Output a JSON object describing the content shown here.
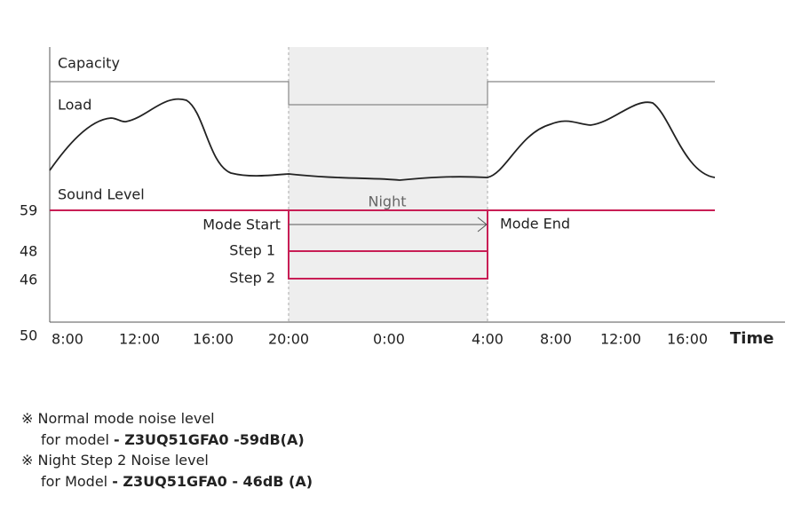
{
  "labels": {
    "capacity": "Capacity",
    "load": "Load",
    "sound_level": "Sound Level",
    "night": "Night",
    "mode_start": "Mode Start",
    "mode_end": "Mode End",
    "step1": "Step 1",
    "step2": "Step 2",
    "time": "Time"
  },
  "y_labels": [
    "59",
    "48",
    "46",
    "50"
  ],
  "x_labels": [
    "8:00",
    "12:00",
    "16:00",
    "20:00",
    "0:00",
    "4:00",
    "8:00",
    "12:00",
    "16:00"
  ],
  "notes": [
    {
      "title": "※ Normal mode noise level",
      "prefix": "for model ",
      "model": "- Z3UQ51GFA0 -59dB(A)"
    },
    {
      "title": "※ Night Step 2 Noise level",
      "prefix": "for Model ",
      "model": "- Z3UQ51GFA0 - 46dB (A)"
    }
  ]
}
